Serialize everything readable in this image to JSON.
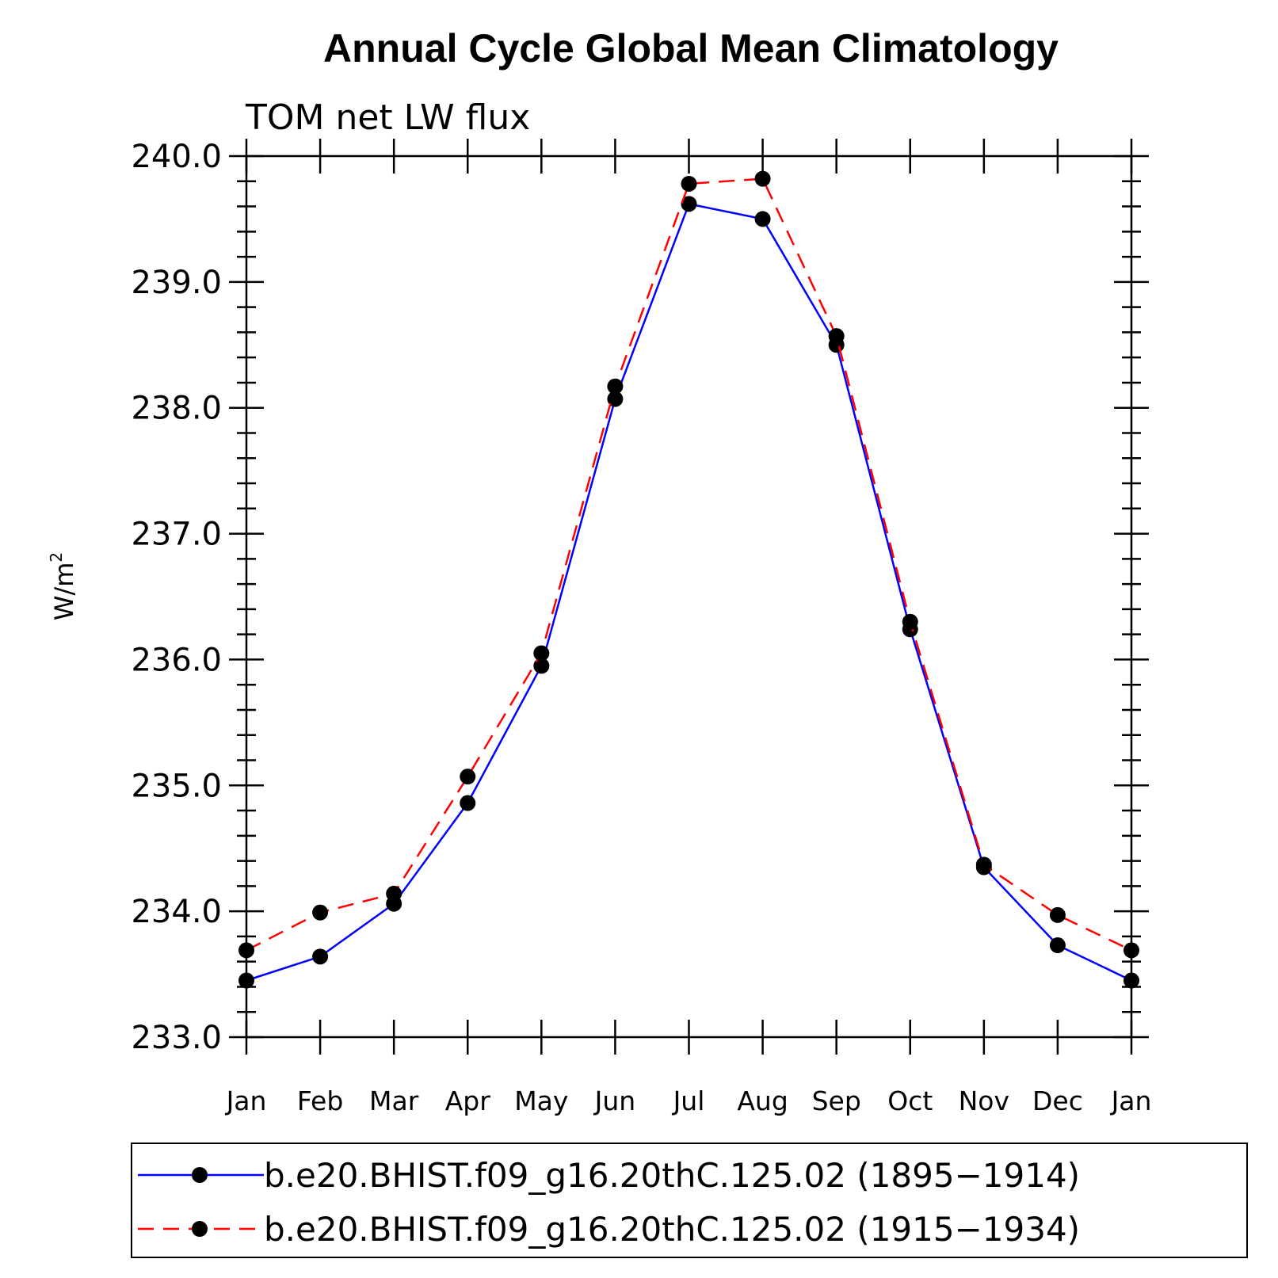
{
  "chart_data": {
    "type": "line",
    "title": "Annual Cycle Global Mean Climatology",
    "subtitle": "TOM net LW flux",
    "xlabel": "",
    "ylabel": "W/m",
    "ylabel_superscript": "2",
    "categories": [
      "Jan",
      "Feb",
      "Mar",
      "Apr",
      "May",
      "Jun",
      "Jul",
      "Aug",
      "Sep",
      "Oct",
      "Nov",
      "Dec",
      "Jan"
    ],
    "ylim": [
      233.0,
      240.0
    ],
    "yticks": [
      233.0,
      234.0,
      235.0,
      236.0,
      237.0,
      238.0,
      239.0,
      240.0
    ],
    "ytick_labels": [
      "233.0",
      "234.0",
      "235.0",
      "236.0",
      "237.0",
      "238.0",
      "239.0",
      "240.0"
    ],
    "series": [
      {
        "name": "b.e20.BHIST.f09_g16.20thC.125.02 (1895−1914)",
        "color": "#0000ff",
        "dash": "solid",
        "values": [
          233.45,
          233.64,
          234.06,
          234.86,
          235.95,
          238.07,
          239.62,
          239.5,
          238.5,
          236.24,
          234.35,
          233.73,
          233.45
        ]
      },
      {
        "name": "b.e20.BHIST.f09_g16.20thC.125.02 (1915−1934)",
        "color": "#ff0000",
        "dash": "dashed",
        "values": [
          233.69,
          233.99,
          234.14,
          235.07,
          236.05,
          238.17,
          239.78,
          239.82,
          238.57,
          236.3,
          234.37,
          233.97,
          233.69
        ]
      }
    ],
    "marker": "filled-circle",
    "legend_position": "bottom"
  }
}
